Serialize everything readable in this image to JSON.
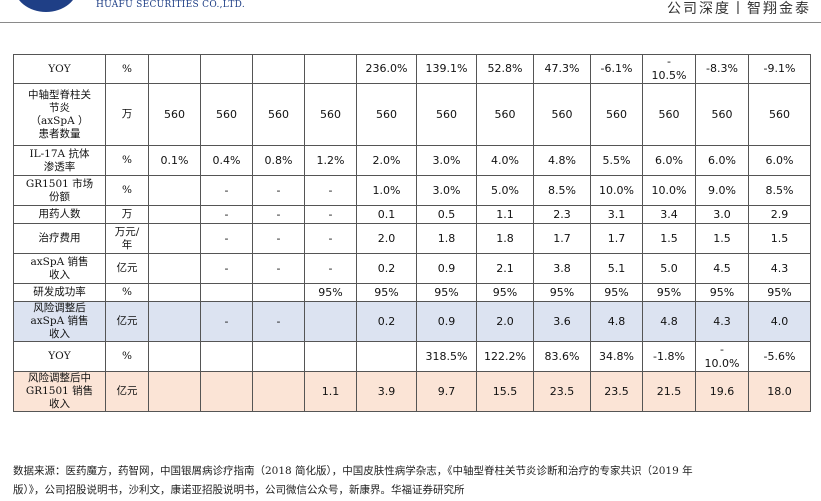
{
  "header": {
    "brand_en": "HUAFU SECURITIES CO.,LTD.",
    "slogan": "公司深度丨智翔金泰"
  },
  "table": {
    "rows": [
      {
        "label": "YOY",
        "unit": "%",
        "values": [
          "",
          "",
          "",
          "",
          "236.0%",
          "139.1%",
          "52.8%",
          "47.3%",
          "-6.1%",
          "-\n10.5%",
          "-8.3%",
          "-9.1%"
        ]
      },
      {
        "label": "中轴型脊柱关\n节炎\n（axSpA ）\n患者数量",
        "unit": "万",
        "values": [
          "560",
          "560",
          "560",
          "560",
          "560",
          "560",
          "560",
          "560",
          "560",
          "560",
          "560",
          "560"
        ]
      },
      {
        "label": "IL-17A 抗体\n渗透率",
        "unit": "%",
        "values": [
          "0.1%",
          "0.4%",
          "0.8%",
          "1.2%",
          "2.0%",
          "3.0%",
          "4.0%",
          "4.8%",
          "5.5%",
          "6.0%",
          "6.0%",
          "6.0%"
        ]
      },
      {
        "label": "GR1501 市场\n份额",
        "unit": "%",
        "values": [
          "",
          "-",
          "-",
          "-",
          "1.0%",
          "3.0%",
          "5.0%",
          "8.5%",
          "10.0%",
          "10.0%",
          "9.0%",
          "8.5%"
        ]
      },
      {
        "label": "用药人数",
        "unit": "万",
        "values": [
          "",
          "-",
          "-",
          "-",
          "0.1",
          "0.5",
          "1.1",
          "2.3",
          "3.1",
          "3.4",
          "3.0",
          "2.9"
        ]
      },
      {
        "label": "治疗费用",
        "unit": "万元/\n年",
        "values": [
          "",
          "-",
          "-",
          "-",
          "2.0",
          "1.8",
          "1.8",
          "1.7",
          "1.7",
          "1.5",
          "1.5",
          "1.5"
        ]
      },
      {
        "label": "axSpA 销售\n收入",
        "unit": "亿元",
        "values": [
          "",
          "-",
          "-",
          "-",
          "0.2",
          "0.9",
          "2.1",
          "3.8",
          "5.1",
          "5.0",
          "4.5",
          "4.3"
        ]
      },
      {
        "label": "研发成功率",
        "unit": "%",
        "values": [
          "",
          "",
          "",
          "95%",
          "95%",
          "95%",
          "95%",
          "95%",
          "95%",
          "95%",
          "95%",
          "95%"
        ]
      },
      {
        "label": "风险调整后\naxSpA 销售\n收入",
        "unit": "亿元",
        "values": [
          "",
          "-",
          "-",
          "",
          "0.2",
          "0.9",
          "2.0",
          "3.6",
          "4.8",
          "4.8",
          "4.3",
          "4.0"
        ],
        "style": "blue"
      },
      {
        "label": "YOY",
        "unit": "%",
        "values": [
          "",
          "",
          "",
          "",
          "",
          "318.5%",
          "122.2%",
          "83.6%",
          "34.8%",
          "-1.8%",
          "-\n10.0%",
          "-5.6%"
        ]
      },
      {
        "label": "风险调整后中\nGR1501 销售\n收入",
        "unit": "亿元",
        "values": [
          "",
          "",
          "",
          "1.1",
          "3.9",
          "9.7",
          "15.5",
          "23.5",
          "23.5",
          "21.5",
          "19.6",
          "18.0"
        ],
        "style": "peach"
      }
    ]
  },
  "source": {
    "line1": "数据来源：医药魔方，药智网，中国银屑病诊疗指南（2018 简化版），中国皮肤性病学杂志，《中轴型脊柱关节炎诊断和治疗的专家共识（2019 年",
    "line2": "版）》，公司招股说明书，沙利文，康诺亚招股说明书，公司微信公众号，新康界。华福证券研究所"
  },
  "colors": {
    "brand": "#1f3f86",
    "highlight_blue": "#dce3f1",
    "highlight_peach": "#fbe4d6"
  }
}
